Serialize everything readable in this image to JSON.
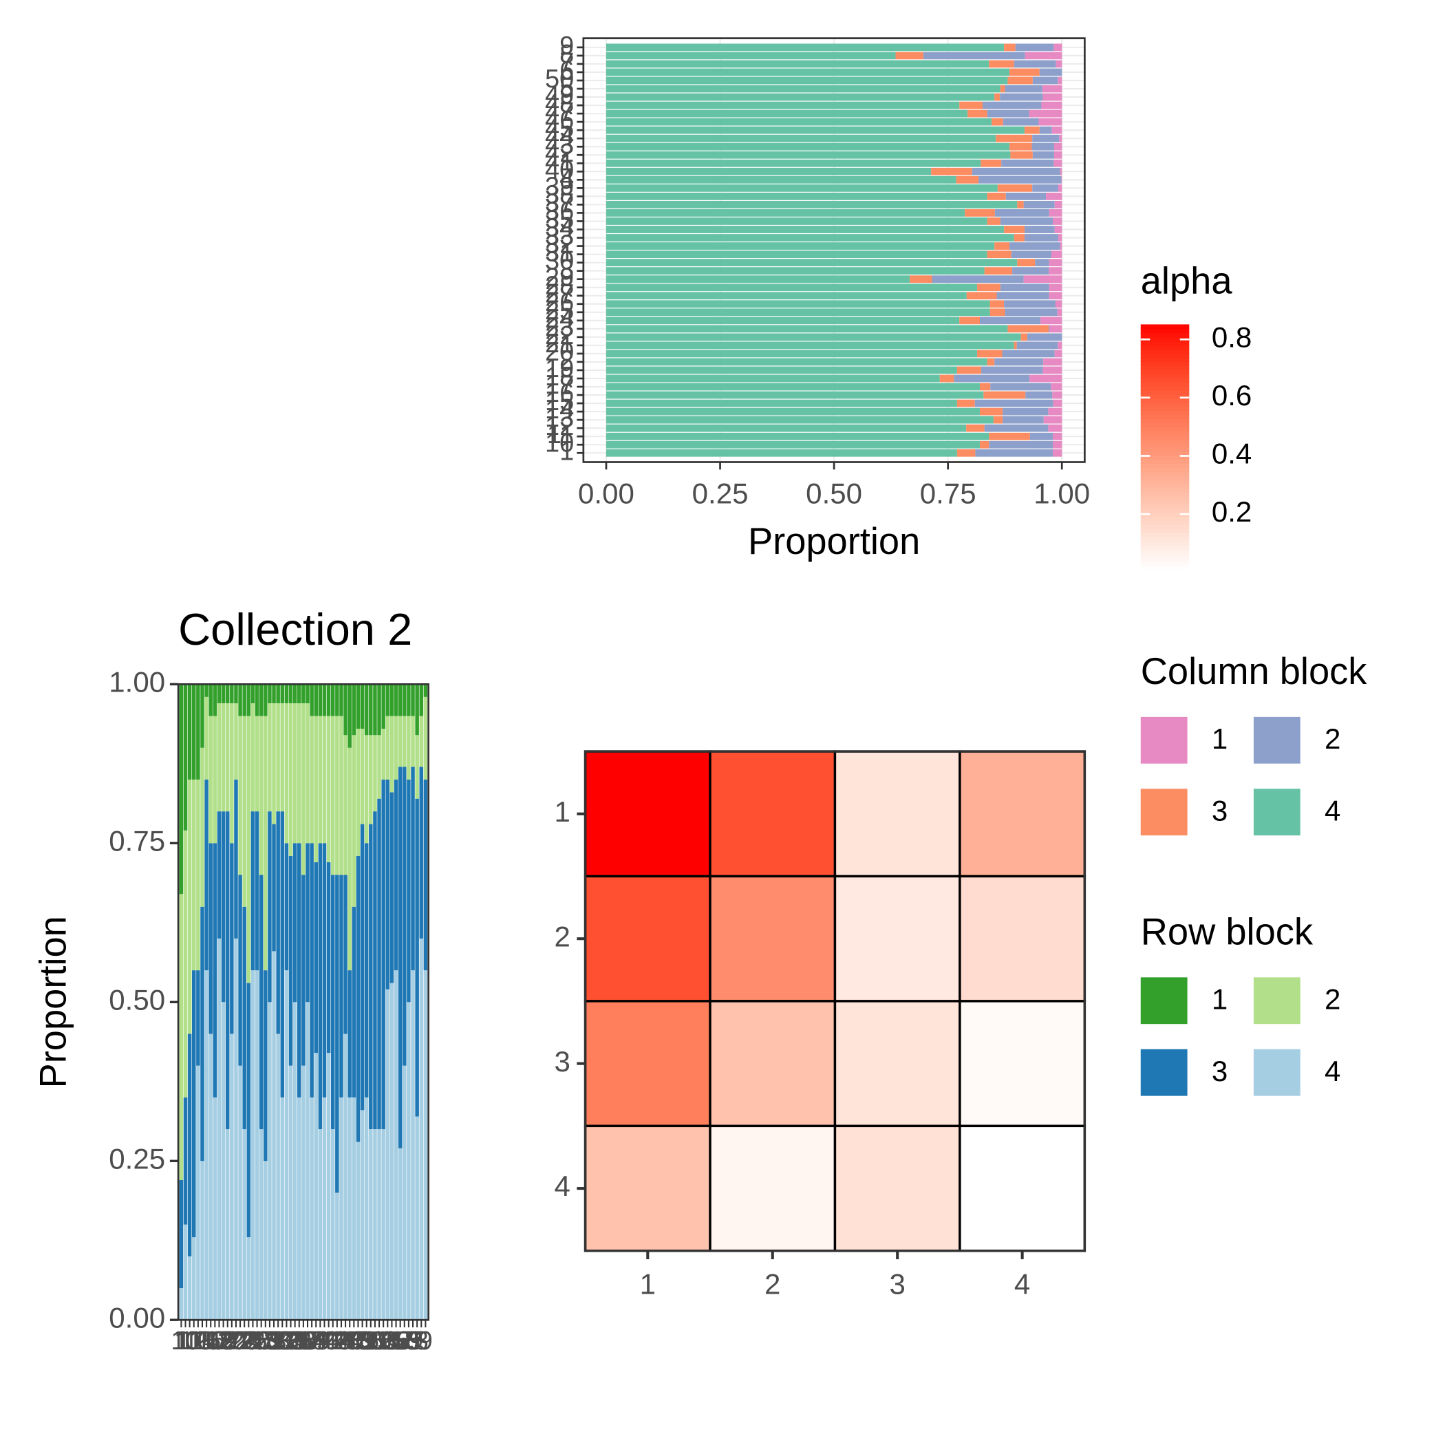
{
  "chart_data": [
    {
      "type": "hbar_stacked",
      "x_label": "Proportion",
      "legend_title": "Column block",
      "xlim": [
        -0.05,
        1.05
      ],
      "xticks": [
        {
          "value": 0,
          "label": "0.00"
        },
        {
          "value": 0.25,
          "label": "0.25"
        },
        {
          "value": 0.5,
          "label": "0.50"
        },
        {
          "value": 0.75,
          "label": "0.75"
        },
        {
          "value": 1,
          "label": "1.00"
        }
      ],
      "grid": true,
      "categories": [
        "9",
        "8",
        "7",
        "6",
        "50",
        "5",
        "49",
        "48",
        "47",
        "46",
        "45",
        "44",
        "43",
        "42",
        "41",
        "40",
        "4",
        "39",
        "38",
        "37",
        "36",
        "35",
        "34",
        "33",
        "32",
        "31",
        "30",
        "3",
        "29",
        "28",
        "27",
        "26",
        "25",
        "24",
        "23",
        "22",
        "21",
        "20",
        "2",
        "19",
        "18",
        "17",
        "16",
        "15",
        "14",
        "13",
        "12",
        "11",
        "10",
        "1"
      ],
      "series": [
        {
          "name": "1",
          "color": "#e78ac3",
          "values": [
            0.018,
            0.081,
            0.013,
            0,
            0.009,
            0.043,
            0.042,
            0.045,
            0.072,
            0.051,
            0.022,
            0.006,
            0.017,
            0.017,
            0.018,
            0.004,
            0.001,
            0.008,
            0.035,
            0.016,
            0.028,
            0.02,
            0.016,
            0.008,
            0.004,
            0.023,
            0.028,
            0.029,
            0.084,
            0.028,
            0.028,
            0.014,
            0.01,
            0.047,
            0.027,
            0,
            0.009,
            0.016,
            0.041,
            0.042,
            0.071,
            0.024,
            0.021,
            0.019,
            0.03,
            0.04,
            0.03,
            0.02,
            0.02,
            0.02
          ]
        },
        {
          "name": "2",
          "color": "#8da0cb",
          "values": [
            0.084,
            0.223,
            0.092,
            0.049,
            0.055,
            0.082,
            0.094,
            0.129,
            0.092,
            0.078,
            0.027,
            0.059,
            0.049,
            0.047,
            0.115,
            0.193,
            0.182,
            0.057,
            0.088,
            0.068,
            0.119,
            0.115,
            0.066,
            0.074,
            0.111,
            0.088,
            0.031,
            0.08,
            0.201,
            0.107,
            0.115,
            0.113,
            0.115,
            0.133,
            0.002,
            0.076,
            0.09,
            0.115,
            0.107,
            0.135,
            0.166,
            0.133,
            0.059,
            0.172,
            0.1,
            0.09,
            0.14,
            0.05,
            0.14,
            0.17
          ]
        },
        {
          "name": "3",
          "color": "#fc8d62",
          "values": [
            0.025,
            0.061,
            0.055,
            0.066,
            0.055,
            0.01,
            0.012,
            0.051,
            0.043,
            0.025,
            0.033,
            0.08,
            0.049,
            0.049,
            0.045,
            0.09,
            0.049,
            0.076,
            0.041,
            0.014,
            0.066,
            0.029,
            0.045,
            0.023,
            0.033,
            0.053,
            0.039,
            0.061,
            0.049,
            0.051,
            0.066,
            0.031,
            0.033,
            0.045,
            0.09,
            0.014,
            0.006,
            0.055,
            0.016,
            0.053,
            0.031,
            0.023,
            0.092,
            0.039,
            0.05,
            0.02,
            0.04,
            0.09,
            0.02,
            0.04
          ]
        },
        {
          "name": "4",
          "color": "#66c2a5",
          "values": [
            0.873,
            0.635,
            0.84,
            0.885,
            0.881,
            0.865,
            0.852,
            0.775,
            0.793,
            0.846,
            0.918,
            0.855,
            0.885,
            0.887,
            0.822,
            0.713,
            0.768,
            0.859,
            0.836,
            0.902,
            0.787,
            0.836,
            0.873,
            0.895,
            0.852,
            0.836,
            0.902,
            0.83,
            0.666,
            0.814,
            0.791,
            0.842,
            0.842,
            0.775,
            0.881,
            0.91,
            0.895,
            0.814,
            0.836,
            0.77,
            0.732,
            0.82,
            0.828,
            0.77,
            0.82,
            0.85,
            0.79,
            0.84,
            0.82,
            0.77
          ]
        }
      ]
    },
    {
      "type": "vbar_stacked",
      "title": "Collection  2",
      "y_label": "Proportion",
      "legend_title": "Row block",
      "ylim": [
        0,
        1
      ],
      "yticks": [
        {
          "value": 0,
          "label": "0.00"
        },
        {
          "value": 0.25,
          "label": "0.25"
        },
        {
          "value": 0.5,
          "label": "0.50"
        },
        {
          "value": 0.75,
          "label": "0.75"
        },
        {
          "value": 1,
          "label": "1.00"
        }
      ],
      "categories": [
        "1",
        "10",
        "11",
        "12",
        "13",
        "14",
        "15",
        "16",
        "17",
        "18",
        "19",
        "2",
        "20",
        "21",
        "22",
        "23",
        "24",
        "25",
        "26",
        "27",
        "28",
        "29",
        "3",
        "30",
        "31",
        "32",
        "33",
        "34",
        "35",
        "36",
        "37",
        "38",
        "39",
        "4",
        "40",
        "41",
        "42",
        "43",
        "44",
        "45",
        "46",
        "47",
        "48",
        "49",
        "5",
        "50",
        "51",
        "52",
        "53",
        "54",
        "55",
        "56",
        "57",
        "58",
        "59",
        "6",
        "7",
        "8",
        "9"
      ],
      "series": [
        {
          "name": "1",
          "color": "#33a02c",
          "values": [
            0.33,
            0.23,
            0.15,
            0.15,
            0.15,
            0.1,
            0.02,
            0.05,
            0.05,
            0.03,
            0.03,
            0.03,
            0.03,
            0.03,
            0.05,
            0.05,
            0.05,
            0.03,
            0.05,
            0.05,
            0.05,
            0.03,
            0.03,
            0.03,
            0.03,
            0.03,
            0.03,
            0.03,
            0.03,
            0.03,
            0.03,
            0.05,
            0.05,
            0.05,
            0.05,
            0.05,
            0.05,
            0.05,
            0.05,
            0.08,
            0.1,
            0.08,
            0.07,
            0.07,
            0.08,
            0.08,
            0.08,
            0.08,
            0.07,
            0.05,
            0.05,
            0.05,
            0.05,
            0.05,
            0.05,
            0.05,
            0.08,
            0.05,
            0.02
          ]
        },
        {
          "name": "2",
          "color": "#b2df8a",
          "values": [
            0.45,
            0.42,
            0.4,
            0.3,
            0.3,
            0.25,
            0.13,
            0.2,
            0.2,
            0.17,
            0.17,
            0.17,
            0.22,
            0.12,
            0.25,
            0.3,
            0.42,
            0.17,
            0.15,
            0.25,
            0.4,
            0.17,
            0.19,
            0.17,
            0.17,
            0.22,
            0.24,
            0.22,
            0.22,
            0.27,
            0.22,
            0.2,
            0.23,
            0.2,
            0.2,
            0.23,
            0.25,
            0.25,
            0.25,
            0.22,
            0.35,
            0.27,
            0.2,
            0.15,
            0.17,
            0.14,
            0.12,
            0.1,
            0.08,
            0.1,
            0.12,
            0.1,
            0.08,
            0.08,
            0.1,
            0.08,
            0.1,
            0.08,
            0.13
          ]
        },
        {
          "name": "3",
          "color": "#1f78b4",
          "values": [
            0.17,
            0.2,
            0.35,
            0.42,
            0.15,
            0.4,
            0.3,
            0.3,
            0.4,
            0.2,
            0.3,
            0.5,
            0.3,
            0.25,
            0.3,
            0.35,
            0.4,
            0.25,
            0.25,
            0.4,
            0.3,
            0.3,
            0.2,
            0.35,
            0.45,
            0.2,
            0.33,
            0.25,
            0.4,
            0.3,
            0.25,
            0.4,
            0.3,
            0.45,
            0.4,
            0.3,
            0.4,
            0.5,
            0.35,
            0.25,
            0.2,
            0.3,
            0.45,
            0.45,
            0.4,
            0.48,
            0.5,
            0.52,
            0.55,
            0.33,
            0.3,
            0.3,
            0.6,
            0.47,
            0.35,
            0.32,
            0.5,
            0.27,
            0.3
          ]
        },
        {
          "name": "4",
          "color": "#a6cee3",
          "values": [
            0.05,
            0.15,
            0.1,
            0.13,
            0.4,
            0.25,
            0.55,
            0.45,
            0.35,
            0.6,
            0.5,
            0.3,
            0.45,
            0.6,
            0.4,
            0.3,
            0.13,
            0.55,
            0.55,
            0.3,
            0.25,
            0.5,
            0.58,
            0.45,
            0.35,
            0.55,
            0.4,
            0.5,
            0.35,
            0.4,
            0.5,
            0.35,
            0.42,
            0.3,
            0.35,
            0.42,
            0.3,
            0.2,
            0.35,
            0.45,
            0.35,
            0.35,
            0.28,
            0.33,
            0.35,
            0.3,
            0.3,
            0.3,
            0.3,
            0.52,
            0.53,
            0.55,
            0.27,
            0.4,
            0.5,
            0.55,
            0.32,
            0.6,
            0.55
          ]
        }
      ]
    },
    {
      "type": "heatmap",
      "legend_title": "alpha",
      "x_categories": [
        "1",
        "2",
        "3",
        "4"
      ],
      "y_categories": [
        "1",
        "2",
        "3",
        "4"
      ],
      "values": [
        [
          0.85,
          0.65,
          0.12,
          0.32
        ],
        [
          0.65,
          0.45,
          0.1,
          0.15
        ],
        [
          0.5,
          0.25,
          0.12,
          0.03
        ],
        [
          0.25,
          0.05,
          0.13,
          0.01
        ]
      ],
      "color_lim": [
        0.01,
        0.85
      ],
      "color_ticks": [
        0.2,
        0.4,
        0.6,
        0.8
      ],
      "low_color": "#ffffff",
      "high_color": "#ff0000"
    }
  ]
}
